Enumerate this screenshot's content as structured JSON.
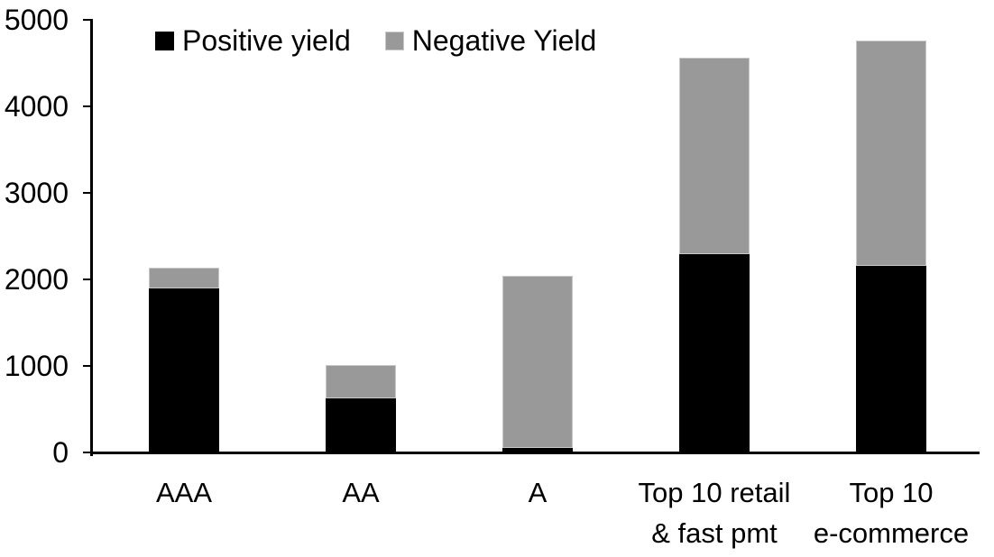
{
  "chart_data": {
    "type": "bar",
    "stacked": true,
    "categories": [
      "AAA",
      "AA",
      "A",
      "Top 10 retail\n& fast pmt",
      "Top 10\ne-commerce"
    ],
    "series": [
      {
        "name": "Positive yield",
        "color": "#000000",
        "values": [
          1890,
          615,
          40,
          2280,
          2150
        ]
      },
      {
        "name": "Negative Yield",
        "color": "#999999",
        "values": [
          230,
          385,
          1990,
          2270,
          2600
        ]
      }
    ],
    "ylim": [
      0,
      5000
    ],
    "yticks": [
      0,
      1000,
      2000,
      3000,
      4000,
      5000
    ],
    "xlabel": "",
    "ylabel": "",
    "grid": false,
    "legend_position": "top",
    "colors": {
      "positive": "#000000",
      "negative": "#999999",
      "axis": "#000000",
      "background": "#ffffff"
    }
  }
}
